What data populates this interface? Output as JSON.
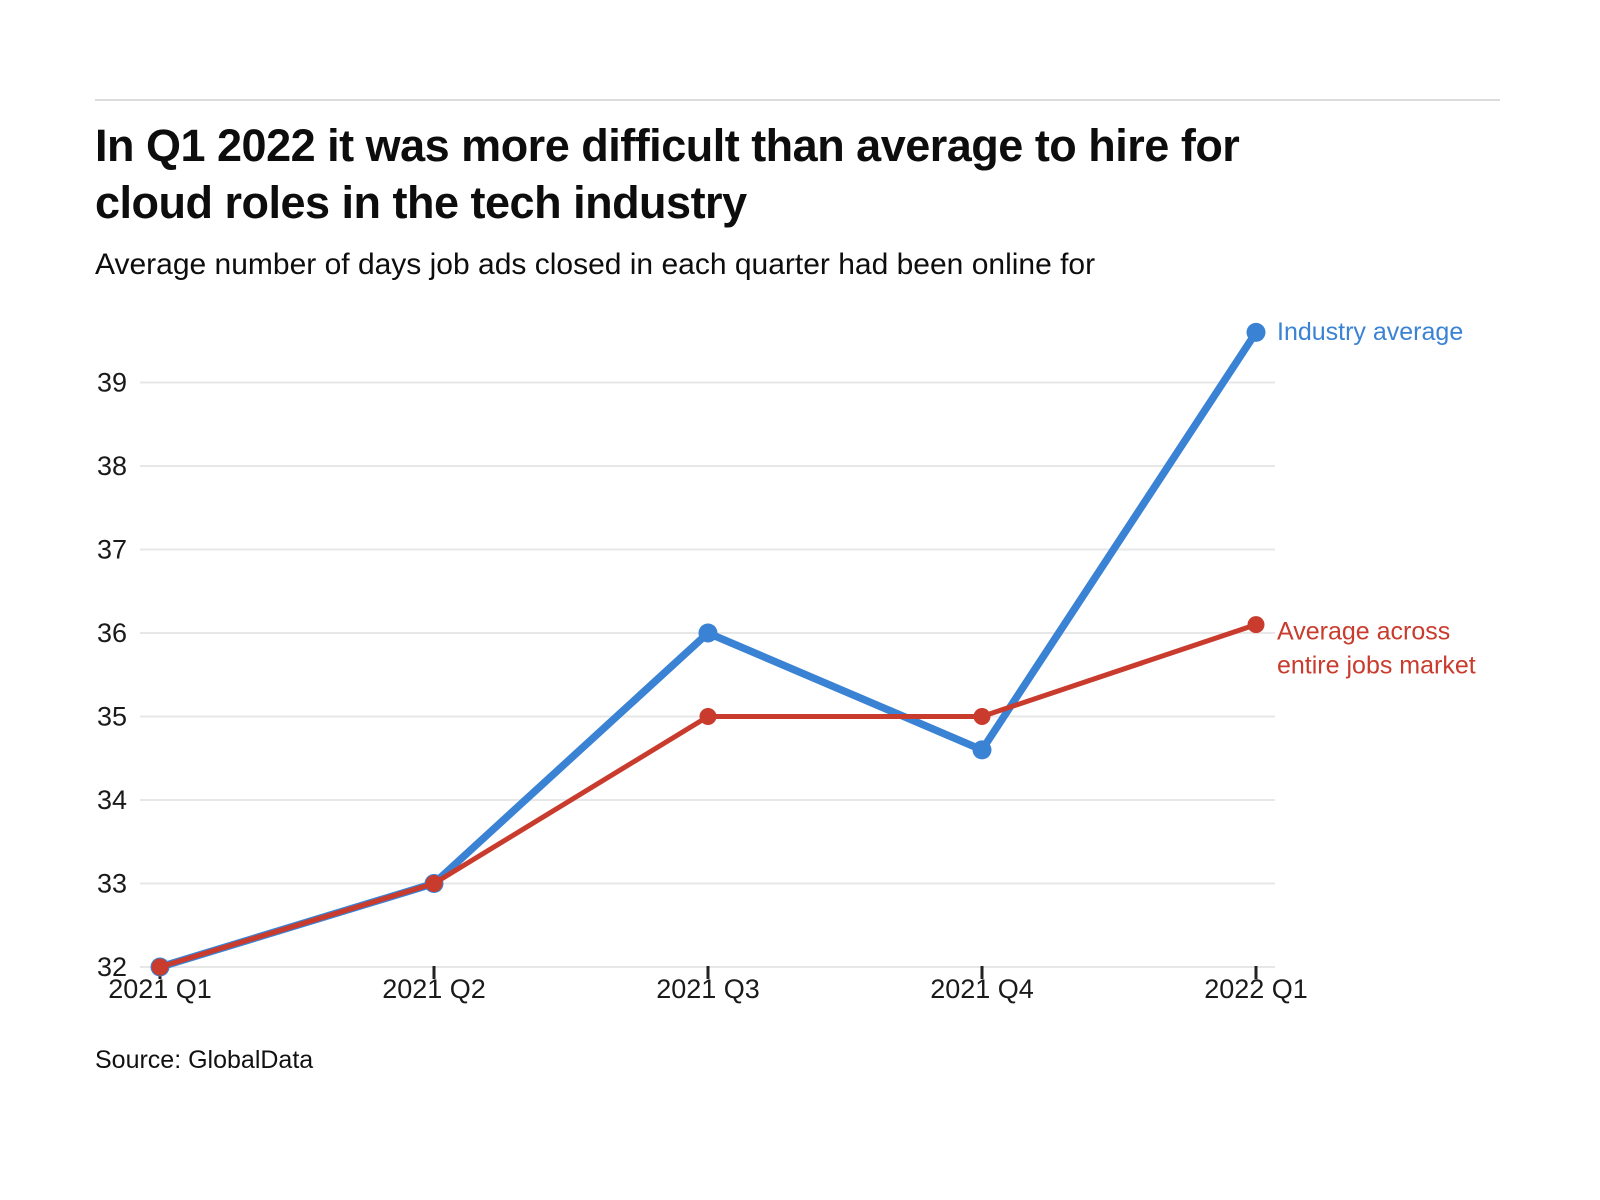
{
  "header": {
    "title_lines": [
      "In Q1 2022 it was more difficult than average to hire for",
      "cloud roles in the tech industry"
    ],
    "subtitle": "Average number of days job ads closed in each quarter had been online for"
  },
  "footer": {
    "source": "Source: GlobalData"
  },
  "chart_data": {
    "type": "line",
    "title": "In Q1 2022 it was more difficult than average to hire for cloud roles in the tech industry",
    "subtitle": "Average number of days job ads closed in each quarter had been online for",
    "categories": [
      "2021 Q1",
      "2021 Q2",
      "2021 Q3",
      "2021 Q4",
      "2022 Q1"
    ],
    "series": [
      {
        "name": "Industry average",
        "color": "#3a82d4",
        "values": [
          32,
          33,
          36,
          34.6,
          39.6
        ],
        "legend_lines": [
          "Industry average"
        ],
        "line_width": 7.5,
        "dot_radius": 9.5
      },
      {
        "name": "Average across entire jobs market",
        "color": "#c93b2d",
        "values": [
          32,
          33,
          35,
          35,
          36.1
        ],
        "legend_lines": [
          "Average across",
          "entire jobs market"
        ],
        "line_width": 5,
        "dot_radius": 8.5
      }
    ],
    "yticks": [
      32,
      33,
      34,
      35,
      36,
      37,
      38,
      39
    ],
    "ylim": [
      32,
      39.75
    ],
    "xlabel": "",
    "ylabel": "",
    "grid": "horizontal",
    "legend_position": "right-of-last-point",
    "source": "Source: GlobalData",
    "colors": {
      "grid": "#e7e7e7",
      "tick": "#222222",
      "axis_text": "#1a1a1a"
    }
  }
}
